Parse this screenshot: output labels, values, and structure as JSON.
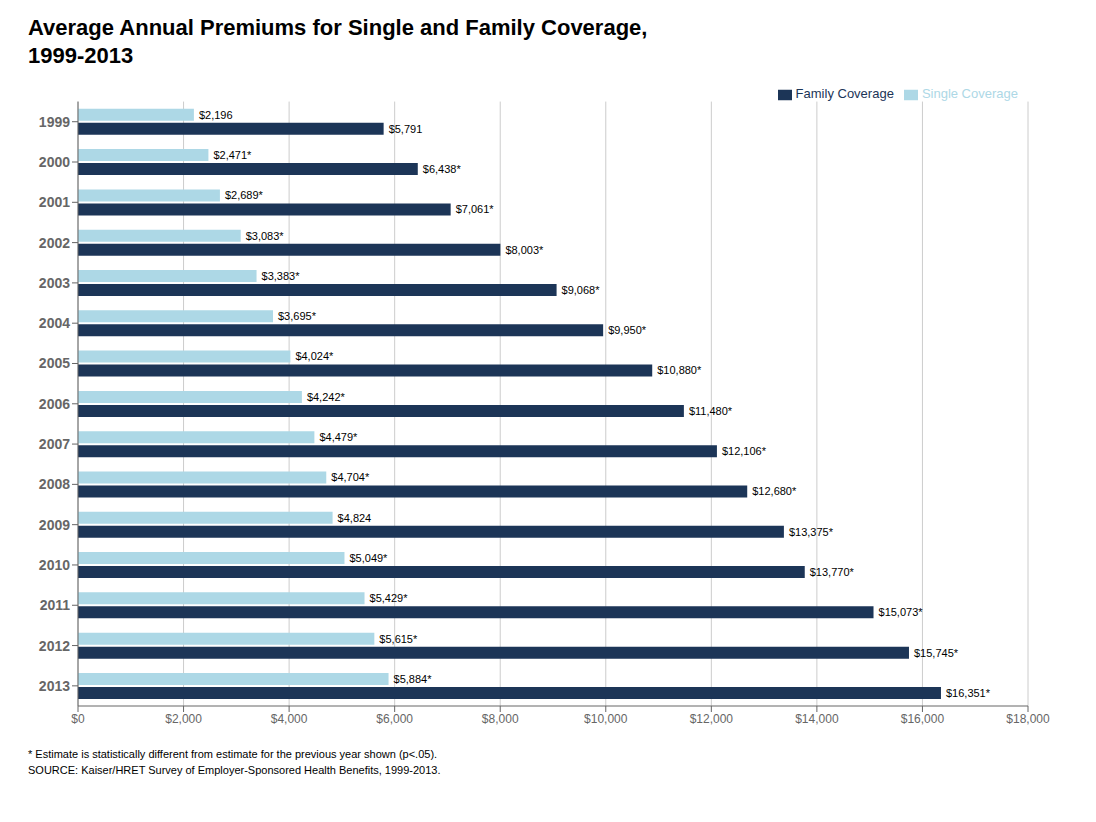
{
  "chart_data": {
    "type": "bar",
    "orientation": "horizontal",
    "title": "Average Annual Premiums for Single and Family Coverage,\n1999-2013",
    "categories": [
      "1999",
      "2000",
      "2001",
      "2002",
      "2003",
      "2004",
      "2005",
      "2006",
      "2007",
      "2008",
      "2009",
      "2010",
      "2011",
      "2012",
      "2013"
    ],
    "series": [
      {
        "name": "Single Coverage",
        "color": "#add8e6",
        "values": [
          2196,
          2471,
          2689,
          3083,
          3383,
          3695,
          4024,
          4242,
          4479,
          4704,
          4824,
          5049,
          5429,
          5615,
          5884
        ],
        "value_labels": [
          "$2,196",
          "$2,471*",
          "$2,689*",
          "$3,083*",
          "$3,383*",
          "$3,695*",
          "$4,024*",
          "$4,242*",
          "$4,479*",
          "$4,704*",
          "$4,824",
          "$5,049*",
          "$5,429*",
          "$5,615*",
          "$5,884*"
        ]
      },
      {
        "name": "Family Coverage",
        "color": "#1c3557",
        "values": [
          5791,
          6438,
          7061,
          8003,
          9068,
          9950,
          10880,
          11480,
          12106,
          12680,
          13375,
          13770,
          15073,
          15745,
          16351
        ],
        "value_labels": [
          "$5,791",
          "$6,438*",
          "$7,061*",
          "$8,003*",
          "$9,068*",
          "$9,950*",
          "$10,880*",
          "$11,480*",
          "$12,106*",
          "$12,680*",
          "$13,375*",
          "$13,770*",
          "$15,073*",
          "$15,745*",
          "$16,351*"
        ]
      }
    ],
    "xlim": [
      0,
      18000
    ],
    "xticks": [
      {
        "value": 0,
        "label": "$0"
      },
      {
        "value": 2000,
        "label": "$2,000"
      },
      {
        "value": 4000,
        "label": "$4,000"
      },
      {
        "value": 6000,
        "label": "$6,000"
      },
      {
        "value": 8000,
        "label": "$8,000"
      },
      {
        "value": 10000,
        "label": "$10,000"
      },
      {
        "value": 12000,
        "label": "$12,000"
      },
      {
        "value": 14000,
        "label": "$14,000"
      },
      {
        "value": 16000,
        "label": "$16,000"
      },
      {
        "value": 18000,
        "label": "$18,000"
      }
    ],
    "grid": true,
    "legend": "upper right",
    "data_labels": true,
    "annotations": [
      "* Estimate is statistically different from estimate for the previous year shown (p<.05).",
      "SOURCE:  Kaiser/HRET Survey of Employer-Sponsored Health Benefits, 1999-2013."
    ]
  }
}
